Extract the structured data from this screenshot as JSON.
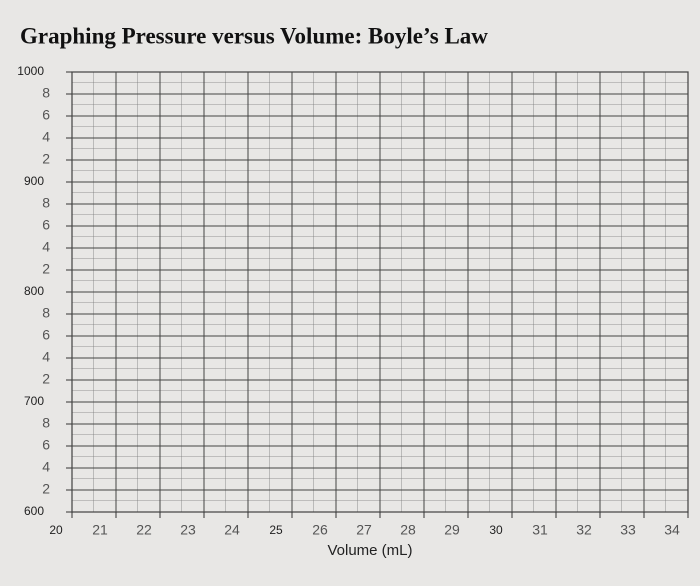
{
  "chart_data": {
    "type": "scatter",
    "title": "Graphing Pressure versus Volume: Boyle’s Law",
    "x_label": "Volume (mL)",
    "xlim": [
      20,
      34
    ],
    "xticks": [
      20,
      21,
      22,
      23,
      24,
      25,
      26,
      27,
      28,
      29,
      30,
      31,
      32,
      33,
      34
    ],
    "ylim": [
      600,
      1000
    ],
    "yticks": [
      600,
      {
        "value": 620,
        "label": "2"
      },
      {
        "value": 640,
        "label": "4"
      },
      {
        "value": 660,
        "label": "6"
      },
      {
        "value": 680,
        "label": "8"
      },
      700,
      {
        "value": 720,
        "label": "2"
      },
      {
        "value": 740,
        "label": "4"
      },
      {
        "value": 760,
        "label": "6"
      },
      {
        "value": 780,
        "label": "8"
      },
      800,
      {
        "value": 820,
        "label": "2"
      },
      {
        "value": 840,
        "label": "4"
      },
      {
        "value": 860,
        "label": "6"
      },
      {
        "value": 880,
        "label": "8"
      },
      900,
      {
        "value": 920,
        "label": "2"
      },
      {
        "value": 940,
        "label": "4"
      },
      {
        "value": 960,
        "label": "6"
      },
      {
        "value": 980,
        "label": "8"
      },
      1000
    ],
    "grid": true
  }
}
